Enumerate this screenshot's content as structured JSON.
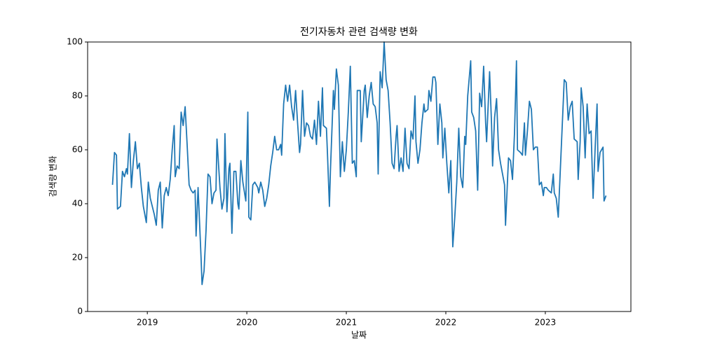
{
  "chart_data": {
    "type": "line",
    "title": "전기자동차 관련 검색량 변화",
    "x_label": "날짜",
    "y_label": "검색량 변화",
    "x": [
      2018.65,
      2018.67,
      2018.69,
      2018.7,
      2018.73,
      2018.75,
      2018.77,
      2018.79,
      2018.8,
      2018.82,
      2018.84,
      2018.86,
      2018.88,
      2018.9,
      2018.92,
      2018.94,
      2018.96,
      2018.99,
      2019.01,
      2019.03,
      2019.05,
      2019.07,
      2019.09,
      2019.11,
      2019.13,
      2019.15,
      2019.17,
      2019.19,
      2019.21,
      2019.23,
      2019.25,
      2019.27,
      2019.28,
      2019.3,
      2019.32,
      2019.34,
      2019.36,
      2019.38,
      2019.4,
      2019.42,
      2019.44,
      2019.46,
      2019.48,
      2019.49,
      2019.51,
      2019.54,
      2019.55,
      2019.57,
      2019.59,
      2019.61,
      2019.63,
      2019.65,
      2019.67,
      2019.69,
      2019.7,
      2019.73,
      2019.75,
      2019.77,
      2019.78,
      2019.8,
      2019.82,
      2019.83,
      2019.85,
      2019.87,
      2019.89,
      2019.91,
      2019.92,
      2019.94,
      2019.96,
      2019.99,
      2020.01,
      2020.02,
      2020.04,
      2020.06,
      2020.08,
      2020.11,
      2020.12,
      2020.14,
      2020.16,
      2020.18,
      2020.2,
      2020.22,
      2020.24,
      2020.26,
      2020.28,
      2020.3,
      2020.32,
      2020.34,
      2020.35,
      2020.37,
      2020.39,
      2020.41,
      2020.43,
      2020.45,
      2020.47,
      2020.49,
      2020.51,
      2020.53,
      2020.54,
      2020.56,
      2020.58,
      2020.6,
      2020.62,
      2020.64,
      2020.66,
      2020.68,
      2020.7,
      2020.72,
      2020.74,
      2020.76,
      2020.77,
      2020.8,
      2020.81,
      2020.83,
      2020.84,
      2020.87,
      2020.88,
      2020.9,
      2020.92,
      2020.94,
      2020.96,
      2020.98,
      2021.0,
      2021.02,
      2021.04,
      2021.06,
      2021.08,
      2021.1,
      2021.11,
      2021.14,
      2021.15,
      2021.18,
      2021.19,
      2021.21,
      2021.23,
      2021.25,
      2021.27,
      2021.29,
      2021.31,
      2021.32,
      2021.34,
      2021.36,
      2021.38,
      2021.4,
      2021.42,
      2021.44,
      2021.46,
      2021.48,
      2021.5,
      2021.51,
      2021.53,
      2021.55,
      2021.57,
      2021.59,
      2021.61,
      2021.63,
      2021.65,
      2021.67,
      2021.69,
      2021.7,
      2021.72,
      2021.74,
      2021.76,
      2021.78,
      2021.79,
      2021.82,
      2021.83,
      2021.85,
      2021.87,
      2021.89,
      2021.9,
      2021.92,
      2021.94,
      2021.96,
      2021.97,
      2021.99,
      2022.01,
      2022.03,
      2022.05,
      2022.07,
      2022.09,
      2022.11,
      2022.13,
      2022.15,
      2022.17,
      2022.19,
      2022.2,
      2022.22,
      2022.25,
      2022.26,
      2022.28,
      2022.3,
      2022.32,
      2022.34,
      2022.36,
      2022.38,
      2022.4,
      2022.41,
      2022.44,
      2022.46,
      2022.47,
      2022.49,
      2022.51,
      2022.53,
      2022.55,
      2022.57,
      2022.59,
      2022.6,
      2022.63,
      2022.65,
      2022.67,
      2022.69,
      2022.71,
      2022.72,
      2022.75,
      2022.77,
      2022.79,
      2022.8,
      2022.82,
      2022.84,
      2022.86,
      2022.88,
      2022.9,
      2022.92,
      2022.94,
      2022.96,
      2022.98,
      2022.99,
      2023.01,
      2023.03,
      2023.06,
      2023.08,
      2023.09,
      2023.11,
      2023.13,
      2023.15,
      2023.17,
      2023.19,
      2023.21,
      2023.23,
      2023.25,
      2023.27,
      2023.29,
      2023.32,
      2023.33,
      2023.35,
      2023.36,
      2023.38,
      2023.4,
      2023.42,
      2023.44,
      2023.46,
      2023.48,
      2023.5,
      2023.52,
      2023.53,
      2023.55,
      2023.58,
      2023.59,
      2023.61
    ],
    "series": [
      {
        "color": "#1f77b4",
        "values": [
          47,
          59,
          58,
          38,
          39,
          52,
          50,
          53,
          51,
          66,
          46,
          56,
          63,
          53,
          55,
          46,
          39,
          33,
          48,
          42,
          39,
          36,
          32,
          45,
          48,
          31,
          43,
          46,
          43,
          49,
          60,
          69,
          50,
          54,
          53,
          74,
          69,
          76,
          62,
          47,
          45,
          44,
          45,
          28,
          46,
          20,
          10,
          15,
          30,
          51,
          50,
          40,
          44,
          45,
          64,
          46,
          38,
          42,
          66,
          37,
          53,
          55,
          29,
          52,
          52,
          40,
          38,
          56,
          48,
          41,
          74,
          35,
          34,
          47,
          48,
          46,
          44,
          48,
          45,
          39,
          42,
          47,
          54,
          59,
          65,
          60,
          60,
          62,
          58,
          77,
          84,
          78,
          84,
          76,
          71,
          82,
          70,
          59,
          62,
          82,
          65,
          70,
          69,
          65,
          64,
          71,
          62,
          78,
          65,
          83,
          69,
          68,
          59,
          39,
          52,
          82,
          75,
          90,
          84,
          50,
          63,
          52,
          60,
          74,
          91,
          55,
          56,
          50,
          82,
          82,
          63,
          82,
          84,
          72,
          80,
          85,
          77,
          76,
          70,
          51,
          89,
          83,
          100,
          86,
          82,
          70,
          55,
          53,
          65,
          69,
          52,
          57,
          52,
          68,
          55,
          53,
          67,
          64,
          80,
          63,
          55,
          60,
          70,
          77,
          74,
          75,
          82,
          78,
          87,
          87,
          85,
          62,
          77,
          70,
          57,
          68,
          55,
          44,
          56,
          24,
          35,
          48,
          68,
          50,
          46,
          65,
          62,
          80,
          93,
          74,
          72,
          67,
          45,
          81,
          76,
          91,
          70,
          63,
          89,
          69,
          54,
          72,
          79,
          60,
          55,
          51,
          47,
          32,
          57,
          56,
          49,
          66,
          93,
          60,
          59,
          58,
          70,
          58,
          67,
          78,
          75,
          60,
          61,
          61,
          47,
          48,
          43,
          46,
          46,
          45,
          44,
          51,
          44,
          42,
          35,
          52,
          69,
          86,
          85,
          71,
          76,
          78,
          64,
          63,
          49,
          63,
          83,
          76,
          57,
          77,
          66,
          67,
          42,
          60,
          77,
          52,
          59,
          61,
          41,
          43
        ]
      }
    ],
    "xlim": [
      2018.4,
      2023.86
    ],
    "xticks": [
      2019,
      2020,
      2021,
      2022,
      2023
    ],
    "ylim": [
      0,
      100
    ],
    "yticks": [
      0,
      20,
      40,
      60,
      80,
      100
    ]
  }
}
